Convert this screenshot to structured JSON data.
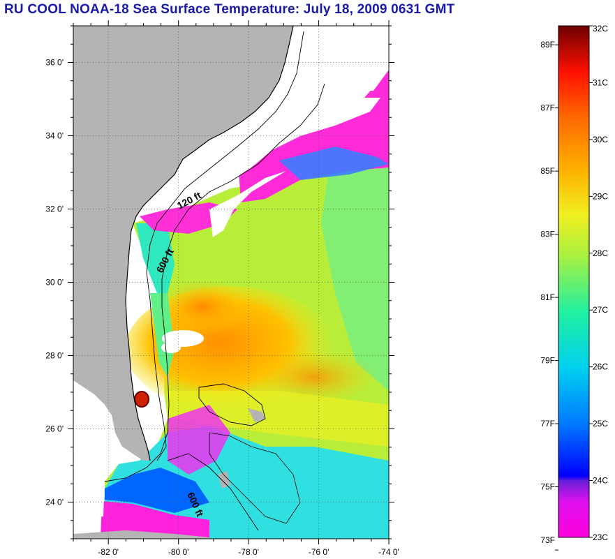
{
  "title": "RU COOL  NOAA-18  Sea Surface Temperature:  July 18, 2009 0631 GMT",
  "map": {
    "lat_range": [
      23.0,
      37.0
    ],
    "lon_range": [
      -83.0,
      -74.0
    ],
    "lat_ticks": [
      "24 0'",
      "26 0'",
      "28 0'",
      "30 0'",
      "32 0'",
      "34 0'",
      "36 0'"
    ],
    "lon_ticks": [
      "-82 0'",
      "-80 0'",
      "-78 0'",
      "-76 0'",
      "-74 0'"
    ],
    "grid": "dotted",
    "land_color": "#b4b4b4",
    "cloud_color": "#ffffff"
  },
  "contours": [
    {
      "label": "120 ft"
    },
    {
      "label": "600 ft"
    },
    {
      "label": "600 ft"
    }
  ],
  "colorbar": {
    "fahrenheit": [
      "89F",
      "87F",
      "85F",
      "83F",
      "81F",
      "79F",
      "77F",
      "75F",
      "73F"
    ],
    "celsius": [
      "32C",
      "31C",
      "30C",
      "29C",
      "28C",
      "27C",
      "26C",
      "25C",
      "24C",
      "23C"
    ],
    "range_c": [
      23,
      32
    ],
    "stops": [
      "#ff00dd",
      "#cc22ee",
      "#7a1fe0",
      "#0000ff",
      "#0077ff",
      "#00c8f0",
      "#00f0d0",
      "#40f080",
      "#a8f040",
      "#f0f020",
      "#ffc000",
      "#ff7a00",
      "#ff2000",
      "#d80000",
      "#7a0000"
    ]
  }
}
